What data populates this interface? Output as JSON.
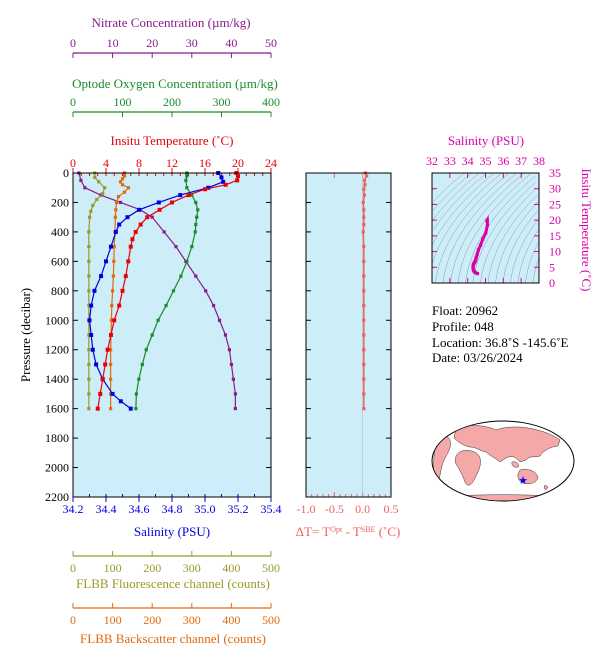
{
  "colors": {
    "nitrate": "#8b1a8b",
    "oxygen": "#1a8c2a",
    "temperature": "#e8000b",
    "salinity": "#0000e0",
    "fluorescence": "#9a9a28",
    "backscatter": "#e06a10",
    "dt": "#f06060",
    "ts": "#dd00aa",
    "panel_bg": "#cdeef8"
  },
  "chart_data": [
    {
      "type": "line",
      "ylabel": "Pressure (decibar)",
      "ylim": [
        2200,
        0
      ],
      "y_ticks": [
        "0",
        "200",
        "400",
        "600",
        "800",
        "1000",
        "1200",
        "1400",
        "1600",
        "1800",
        "2000",
        "2200"
      ],
      "axes": {
        "nitrate": {
          "label": "Nitrate Concentration (µm/kg)",
          "range": [
            0,
            50
          ],
          "ticks": [
            "0",
            "10",
            "20",
            "30",
            "40",
            "50"
          ]
        },
        "oxygen": {
          "label": "Optode Oxygen Concentration (µm/kg)",
          "range": [
            0,
            400
          ],
          "ticks": [
            "0",
            "100",
            "200",
            "300",
            "400"
          ]
        },
        "temperature": {
          "label": "Insitu Temperature (˚C)",
          "range": [
            0,
            24
          ],
          "ticks": [
            "0",
            "4",
            "8",
            "12",
            "16",
            "20",
            "24"
          ]
        },
        "salinity": {
          "label": "Salinity (PSU)",
          "range": [
            34.2,
            35.4
          ],
          "ticks": [
            "34.2",
            "34.4",
            "34.6",
            "34.8",
            "35.0",
            "35.2",
            "35.4"
          ]
        },
        "fluorescence": {
          "label": "FLBB Fluorescence channel (counts)",
          "range": [
            0,
            500
          ],
          "ticks": [
            "0",
            "100",
            "200",
            "300",
            "400",
            "500"
          ]
        },
        "backscatter": {
          "label": "FLBB Backscatter channel (counts)",
          "range": [
            0,
            500
          ],
          "ticks": [
            "0",
            "100",
            "200",
            "300",
            "400",
            "500"
          ]
        }
      },
      "series": {
        "temperature": [
          [
            0,
            19.8
          ],
          [
            20,
            20.0
          ],
          [
            50,
            19.9
          ],
          [
            80,
            18.5
          ],
          [
            110,
            16.0
          ],
          [
            150,
            14.0
          ],
          [
            200,
            12.0
          ],
          [
            250,
            10.5
          ],
          [
            300,
            9.0
          ],
          [
            350,
            8.2
          ],
          [
            400,
            7.6
          ],
          [
            450,
            7.2
          ],
          [
            500,
            7.0
          ],
          [
            600,
            6.7
          ],
          [
            700,
            6.4
          ],
          [
            800,
            6.0
          ],
          [
            900,
            5.6
          ],
          [
            1000,
            5.0
          ],
          [
            1100,
            4.6
          ],
          [
            1200,
            4.2
          ],
          [
            1300,
            3.9
          ],
          [
            1400,
            3.6
          ],
          [
            1500,
            3.3
          ],
          [
            1600,
            3.0
          ]
        ],
        "salinity": [
          [
            0,
            35.08
          ],
          [
            30,
            35.1
          ],
          [
            60,
            35.11
          ],
          [
            100,
            35.02
          ],
          [
            150,
            34.85
          ],
          [
            200,
            34.72
          ],
          [
            250,
            34.6
          ],
          [
            300,
            34.53
          ],
          [
            350,
            34.48
          ],
          [
            400,
            34.46
          ],
          [
            500,
            34.43
          ],
          [
            600,
            34.4
          ],
          [
            700,
            34.37
          ],
          [
            800,
            34.33
          ],
          [
            900,
            34.31
          ],
          [
            1000,
            34.3
          ],
          [
            1100,
            34.31
          ],
          [
            1200,
            34.32
          ],
          [
            1300,
            34.34
          ],
          [
            1400,
            34.38
          ],
          [
            1500,
            34.44
          ],
          [
            1550,
            34.49
          ],
          [
            1600,
            34.55
          ]
        ],
        "oxygen": [
          [
            0,
            230
          ],
          [
            20,
            230
          ],
          [
            50,
            228
          ],
          [
            100,
            230
          ],
          [
            150,
            240
          ],
          [
            200,
            248
          ],
          [
            250,
            252
          ],
          [
            300,
            250
          ],
          [
            350,
            248
          ],
          [
            400,
            247
          ],
          [
            500,
            240
          ],
          [
            600,
            230
          ],
          [
            700,
            218
          ],
          [
            800,
            203
          ],
          [
            900,
            188
          ],
          [
            1000,
            172
          ],
          [
            1100,
            160
          ],
          [
            1200,
            148
          ],
          [
            1300,
            140
          ],
          [
            1400,
            133
          ],
          [
            1500,
            128
          ],
          [
            1600,
            127
          ]
        ],
        "nitrate": [
          [
            0,
            1.5
          ],
          [
            50,
            2.0
          ],
          [
            100,
            3.0
          ],
          [
            150,
            7.0
          ],
          [
            200,
            12.0
          ],
          [
            250,
            17.0
          ],
          [
            300,
            20.0
          ],
          [
            400,
            23.0
          ],
          [
            500,
            26.0
          ],
          [
            600,
            28.5
          ],
          [
            700,
            31.0
          ],
          [
            800,
            33.5
          ],
          [
            900,
            35.5
          ],
          [
            1000,
            37.0
          ],
          [
            1100,
            38.5
          ],
          [
            1200,
            39.5
          ],
          [
            1300,
            40.0
          ],
          [
            1400,
            40.5
          ],
          [
            1500,
            41.0
          ],
          [
            1600,
            41.0
          ]
        ],
        "fluorescence": [
          [
            0,
            55
          ],
          [
            30,
            55
          ],
          [
            60,
            65
          ],
          [
            100,
            80
          ],
          [
            140,
            75
          ],
          [
            180,
            60
          ],
          [
            220,
            50
          ],
          [
            260,
            45
          ],
          [
            300,
            42
          ],
          [
            400,
            40
          ],
          [
            500,
            40
          ],
          [
            600,
            40
          ],
          [
            700,
            40
          ],
          [
            800,
            40
          ],
          [
            900,
            40
          ],
          [
            1000,
            40
          ],
          [
            1100,
            40
          ],
          [
            1200,
            40
          ],
          [
            1300,
            40
          ],
          [
            1400,
            40
          ],
          [
            1500,
            40
          ],
          [
            1600,
            40
          ]
        ],
        "backscatter": [
          [
            0,
            130
          ],
          [
            20,
            130
          ],
          [
            40,
            125
          ],
          [
            60,
            120
          ],
          [
            80,
            125
          ],
          [
            100,
            140
          ],
          [
            130,
            130
          ],
          [
            160,
            115
          ],
          [
            200,
            110
          ],
          [
            250,
            108
          ],
          [
            300,
            107
          ],
          [
            400,
            106
          ],
          [
            500,
            104
          ],
          [
            600,
            103
          ],
          [
            700,
            102
          ],
          [
            800,
            100
          ],
          [
            900,
            98
          ],
          [
            1000,
            97
          ],
          [
            1100,
            96
          ],
          [
            1200,
            95
          ],
          [
            1300,
            95
          ],
          [
            1400,
            95
          ],
          [
            1500,
            95
          ],
          [
            1600,
            95
          ]
        ]
      }
    },
    {
      "type": "line",
      "xlabel": "ΔT= T^Opt - T^SBE (˚C)",
      "xlim": [
        -1.0,
        0.5
      ],
      "x_ticks": [
        "-1.0",
        "-0.5",
        "0.0",
        "0.5"
      ],
      "ylim": [
        2200,
        0
      ],
      "series": [
        {
          "values": [
            [
              0,
              0.05
            ],
            [
              20,
              0.07
            ],
            [
              50,
              0.03
            ],
            [
              80,
              0.04
            ],
            [
              110,
              0.02
            ],
            [
              150,
              0.03
            ],
            [
              200,
              0.01
            ],
            [
              250,
              0.02
            ],
            [
              300,
              0.02
            ],
            [
              350,
              0.02
            ],
            [
              400,
              0.01
            ],
            [
              500,
              0.02
            ],
            [
              600,
              0.02
            ],
            [
              700,
              0.02
            ],
            [
              800,
              0.02
            ],
            [
              900,
              0.02
            ],
            [
              1000,
              0.02
            ],
            [
              1100,
              0.02
            ],
            [
              1200,
              0.02
            ],
            [
              1300,
              0.02
            ],
            [
              1400,
              0.02
            ],
            [
              1500,
              0.02
            ],
            [
              1600,
              0.02
            ]
          ]
        }
      ]
    },
    {
      "type": "scatter",
      "title": "Salinity (PSU)",
      "ylabel": "Insitu Temperature (˚C)",
      "xlim": [
        32,
        38
      ],
      "ylim": [
        0,
        35
      ],
      "x_ticks": [
        "32",
        "33",
        "34",
        "35",
        "36",
        "37",
        "38"
      ],
      "y_ticks": [
        "0",
        "5",
        "10",
        "15",
        "20",
        "25",
        "30",
        "35"
      ],
      "points": [
        [
          34.55,
          3.0
        ],
        [
          34.44,
          3.3
        ],
        [
          34.38,
          3.6
        ],
        [
          34.34,
          3.9
        ],
        [
          34.32,
          4.2
        ],
        [
          34.31,
          4.6
        ],
        [
          34.3,
          5.0
        ],
        [
          34.31,
          5.6
        ],
        [
          34.33,
          6.0
        ],
        [
          34.37,
          6.4
        ],
        [
          34.4,
          6.7
        ],
        [
          34.43,
          7.0
        ],
        [
          34.46,
          7.6
        ],
        [
          34.48,
          8.2
        ],
        [
          34.53,
          9.0
        ],
        [
          34.6,
          10.5
        ],
        [
          34.72,
          12.0
        ],
        [
          34.85,
          14.0
        ],
        [
          35.02,
          16.0
        ],
        [
          35.11,
          18.5
        ],
        [
          35.1,
          20.0
        ],
        [
          35.08,
          19.8
        ]
      ]
    }
  ],
  "info": {
    "float": "Float:  20962",
    "profile": "Profile:  048",
    "location": "Location:  36.8˚S  -145.6˚E",
    "date": "Date:  03/26/2024"
  },
  "map": {
    "marker": "star"
  }
}
